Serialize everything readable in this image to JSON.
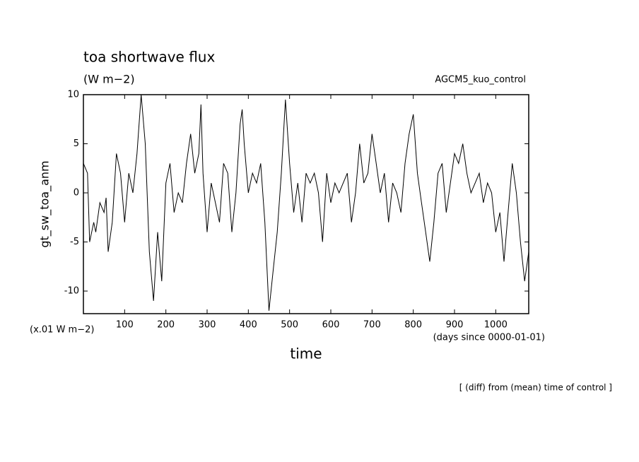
{
  "chart_data": {
    "type": "line",
    "title": "toa shortwave flux",
    "subtitle": "(W m−2)",
    "annotation_right": "AGCM5_kuo_control",
    "ylabel": "gt_sw_toa_anm",
    "xlabel": "time",
    "y_unit_label": "(x.01 W m−2)",
    "x_unit_label": "(days since 0000-01-01)",
    "footer": "[ (diff) from (mean) time of control ]",
    "xlim": [
      0,
      1080
    ],
    "ylim": [
      -12.3,
      10
    ],
    "xticks": [
      100,
      200,
      300,
      400,
      500,
      600,
      700,
      800,
      900,
      1000
    ],
    "yticks": [
      -10,
      -5,
      0,
      5,
      10
    ],
    "color": "#000000",
    "x": [
      0,
      10,
      15,
      25,
      30,
      40,
      50,
      55,
      60,
      70,
      80,
      90,
      100,
      110,
      120,
      130,
      140,
      150,
      160,
      170,
      180,
      190,
      200,
      210,
      220,
      230,
      240,
      250,
      260,
      270,
      280,
      285,
      290,
      300,
      310,
      320,
      330,
      340,
      350,
      360,
      370,
      380,
      385,
      390,
      400,
      410,
      420,
      430,
      440,
      450,
      460,
      470,
      480,
      490,
      500,
      510,
      520,
      530,
      540,
      550,
      560,
      570,
      580,
      590,
      600,
      610,
      620,
      630,
      640,
      650,
      660,
      670,
      680,
      690,
      700,
      710,
      720,
      730,
      740,
      750,
      760,
      770,
      780,
      790,
      800,
      810,
      820,
      830,
      840,
      850,
      860,
      870,
      880,
      890,
      900,
      910,
      920,
      930,
      940,
      950,
      960,
      970,
      980,
      990,
      1000,
      1010,
      1020,
      1030,
      1040,
      1050,
      1060,
      1070,
      1080
    ],
    "values": [
      3,
      2,
      -5,
      -3,
      -4,
      -1,
      -2,
      -0.5,
      -6,
      -3,
      4,
      2,
      -3,
      2,
      0,
      4,
      10,
      5,
      -6,
      -11,
      -4,
      -9,
      1,
      3,
      -2,
      0,
      -1,
      3,
      6,
      2,
      4,
      9,
      2,
      -4,
      1,
      -1,
      -3,
      3,
      2,
      -4,
      0,
      7,
      8.5,
      5,
      0,
      2,
      1,
      3,
      -3,
      -12,
      -8,
      -4,
      2,
      9.5,
      3,
      -2,
      1,
      -3,
      2,
      1,
      2,
      0,
      -5,
      2,
      -1,
      1,
      0,
      1,
      2,
      -3,
      0,
      5,
      1,
      2,
      6,
      3,
      0,
      2,
      -3,
      1,
      0,
      -2,
      3,
      6,
      8,
      2,
      -1,
      -4,
      -7,
      -3,
      2,
      3,
      -2,
      1,
      4,
      3,
      5,
      2,
      0,
      1,
      2,
      -1,
      1,
      0,
      -4,
      -2,
      -7,
      -2,
      3,
      0,
      -5,
      -9,
      -6
    ]
  }
}
